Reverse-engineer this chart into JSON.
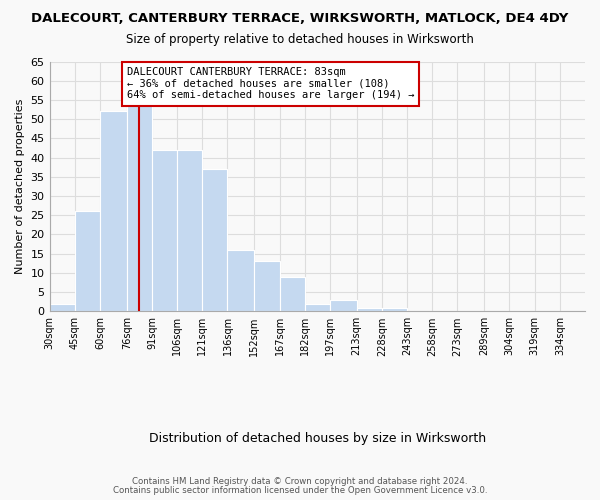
{
  "title": "DALECOURT, CANTERBURY TERRACE, WIRKSWORTH, MATLOCK, DE4 4DY",
  "subtitle": "Size of property relative to detached houses in Wirksworth",
  "xlabel": "Distribution of detached houses by size in Wirksworth",
  "ylabel": "Number of detached properties",
  "bar_color": "#c5d9f0",
  "bin_labels": [
    "30sqm",
    "45sqm",
    "60sqm",
    "76sqm",
    "91sqm",
    "106sqm",
    "121sqm",
    "136sqm",
    "152sqm",
    "167sqm",
    "182sqm",
    "197sqm",
    "213sqm",
    "228sqm",
    "243sqm",
    "258sqm",
    "273sqm",
    "289sqm",
    "304sqm",
    "319sqm",
    "334sqm"
  ],
  "bin_edges": [
    30,
    45,
    60,
    76,
    91,
    106,
    121,
    136,
    152,
    167,
    182,
    197,
    213,
    228,
    243,
    258,
    273,
    289,
    304,
    319,
    334,
    349
  ],
  "bar_heights": [
    2,
    26,
    52,
    54,
    42,
    42,
    37,
    16,
    13,
    9,
    2,
    3,
    1,
    1,
    0,
    0,
    0,
    0,
    0,
    0,
    0
  ],
  "ylim": [
    0,
    65
  ],
  "yticks": [
    0,
    5,
    10,
    15,
    20,
    25,
    30,
    35,
    40,
    45,
    50,
    55,
    60,
    65
  ],
  "tick_positions": [
    30,
    45,
    60,
    76,
    91,
    106,
    121,
    136,
    152,
    167,
    182,
    197,
    213,
    228,
    243,
    258,
    273,
    289,
    304,
    319,
    334
  ],
  "vline_x": 83,
  "vline_color": "#cc0000",
  "annotation_line1": "DALECOURT CANTERBURY TERRACE: 83sqm",
  "annotation_line2": "← 36% of detached houses are smaller (108)",
  "annotation_line3": "64% of semi-detached houses are larger (194) →",
  "footnote1": "Contains HM Land Registry data © Crown copyright and database right 2024.",
  "footnote2": "Contains public sector information licensed under the Open Government Licence v3.0.",
  "background_color": "#f9f9f9",
  "grid_color": "#dddddd"
}
